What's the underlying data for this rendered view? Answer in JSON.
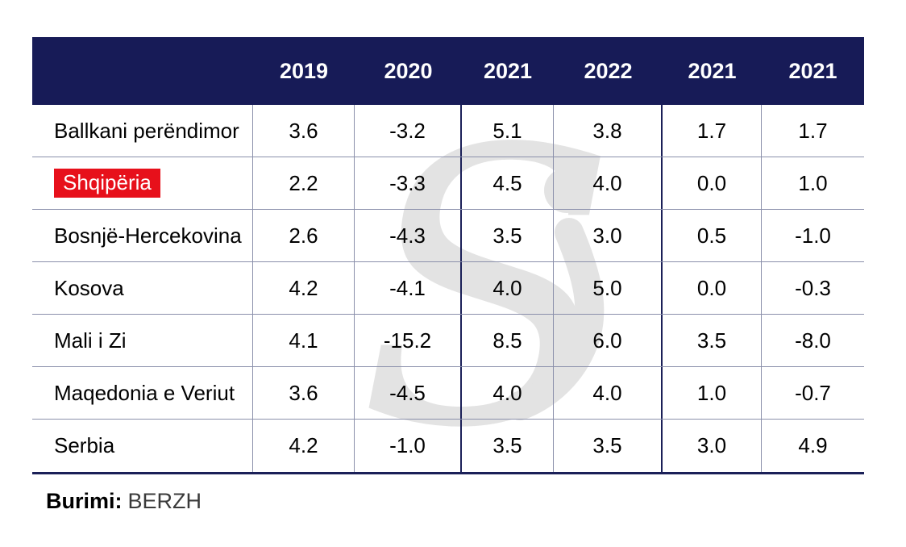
{
  "chart_data": {
    "type": "table",
    "columns": [
      "2019",
      "2020",
      "2021",
      "2022",
      "2021",
      "2021"
    ],
    "rows": [
      [
        "Ballkani perëndimor",
        3.6,
        -3.2,
        5.1,
        3.8,
        1.7,
        1.7
      ],
      [
        "Shqipëria",
        2.2,
        -3.3,
        4.5,
        4.0,
        0.0,
        1.0
      ],
      [
        "Bosnjë-Hercekovina",
        2.6,
        -4.3,
        3.5,
        3.0,
        0.5,
        -1.0
      ],
      [
        "Kosova",
        4.2,
        -4.1,
        4.0,
        5.0,
        0.0,
        -0.3
      ],
      [
        "Mali i Zi",
        4.1,
        -15.2,
        8.5,
        6.0,
        3.5,
        -8.0
      ],
      [
        "Maqedonia e Veriut",
        3.6,
        -4.5,
        4.0,
        4.0,
        1.0,
        -0.7
      ],
      [
        "Serbia",
        4.2,
        -1.0,
        3.5,
        3.5,
        3.0,
        4.9
      ]
    ],
    "highlighted_row": "Shqipëria",
    "source": "Burimi: BERZH",
    "title": "",
    "legend_position": "none"
  },
  "table": {
    "header": [
      "2019",
      "2020",
      "2021",
      "2022",
      "2021",
      "2021"
    ],
    "rows": [
      {
        "label": "Ballkani perëndimor",
        "highlight": false,
        "values": [
          "3.6",
          "-3.2",
          "5.1",
          "3.8",
          "1.7",
          "1.7"
        ]
      },
      {
        "label": "Shqipëria",
        "highlight": true,
        "values": [
          "2.2",
          "-3.3",
          "4.5",
          "4.0",
          "0.0",
          "1.0"
        ]
      },
      {
        "label": "Bosnjë-Hercekovina",
        "highlight": false,
        "values": [
          "2.6",
          "-4.3",
          "3.5",
          "3.0",
          "0.5",
          "-1.0"
        ]
      },
      {
        "label": "Kosova",
        "highlight": false,
        "values": [
          "4.2",
          "-4.1",
          "4.0",
          "5.0",
          "0.0",
          "-0.3"
        ]
      },
      {
        "label": "Mali i Zi",
        "highlight": false,
        "values": [
          "4.1",
          "-15.2",
          "8.5",
          "6.0",
          "3.5",
          "-8.0"
        ]
      },
      {
        "label": "Maqedonia e Veriut",
        "highlight": false,
        "values": [
          "3.6",
          "-4.5",
          "4.0",
          "4.0",
          "1.0",
          "-0.7"
        ]
      },
      {
        "label": "Serbia",
        "highlight": false,
        "values": [
          "4.2",
          "-1.0",
          "3.5",
          "3.5",
          "3.0",
          "4.9"
        ]
      }
    ]
  },
  "source": {
    "label": "Burimi:",
    "value": "BERZH"
  },
  "watermark": {
    "glyph": "S"
  },
  "colors": {
    "header_bg": "#171b57",
    "header_text": "#ffffff",
    "grid_light": "#8b90ab",
    "grid_dark": "#1b2058",
    "highlight_red": "#e7101b",
    "watermark_gray": "#e3e3e3",
    "body_text": "#010101"
  }
}
